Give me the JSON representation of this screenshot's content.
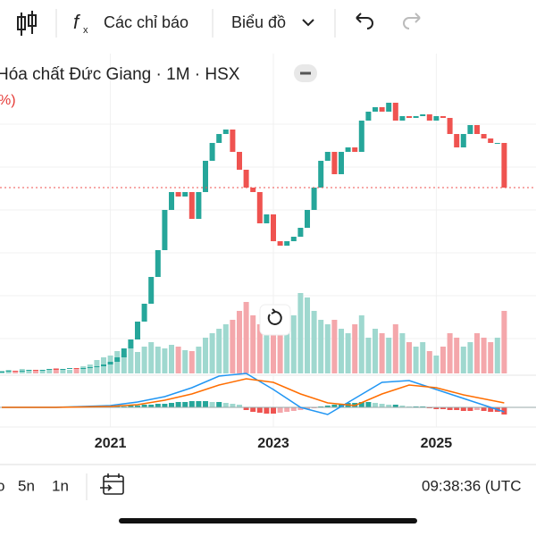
{
  "toolbar": {
    "indicators": "Các chỉ báo",
    "chart_menu": "Biểu đồ"
  },
  "chart": {
    "title": "Hóa chất Đức Giang · 1M · HSX",
    "change": "%)",
    "x_labels": [
      {
        "index": 16,
        "label": "2021"
      },
      {
        "index": 40,
        "label": "2023"
      },
      {
        "index": 64,
        "label": "2025"
      }
    ],
    "close": [
      24,
      25,
      24,
      25,
      26,
      25,
      26,
      27,
      26,
      27,
      28,
      27,
      28,
      29,
      30,
      32,
      35,
      40,
      50,
      60,
      80,
      100,
      130,
      160,
      205,
      225,
      220,
      225,
      195,
      225,
      260,
      280,
      290,
      295,
      270,
      250,
      230,
      225,
      190,
      200,
      170,
      165,
      170,
      175,
      185,
      205,
      230,
      260,
      270,
      245,
      270,
      275,
      270,
      305,
      315,
      320,
      315,
      325,
      305,
      310,
      308,
      310,
      312,
      305,
      310,
      308,
      290,
      275,
      290,
      300,
      290,
      285,
      280,
      280,
      230
    ],
    "volume": [
      3,
      4,
      3,
      5,
      4,
      3,
      4,
      5,
      6,
      5,
      4,
      6,
      8,
      10,
      15,
      18,
      20,
      25,
      22,
      28,
      24,
      30,
      35,
      30,
      28,
      32,
      30,
      26,
      25,
      30,
      40,
      45,
      50,
      55,
      60,
      70,
      80,
      65,
      55,
      45,
      60,
      70,
      75,
      65,
      90,
      85,
      70,
      60,
      55,
      60,
      50,
      45,
      55,
      65,
      40,
      50,
      45,
      40,
      55,
      45,
      35,
      30,
      35,
      25,
      20,
      30,
      45,
      40,
      30,
      35,
      45,
      40,
      35,
      40,
      70
    ],
    "histogram": [
      0,
      0,
      0,
      0,
      0,
      0,
      0,
      0,
      0,
      0,
      0,
      0,
      0,
      0,
      0,
      0,
      0,
      1,
      1,
      2,
      2,
      3,
      3,
      4,
      4,
      5,
      6,
      6,
      7,
      7,
      7,
      6,
      6,
      5,
      4,
      3,
      -3,
      -5,
      -6,
      -7,
      -7,
      -6,
      -5,
      -4,
      -3,
      -2,
      -1,
      1,
      2,
      3,
      4,
      5,
      5,
      6,
      6,
      5,
      4,
      3,
      3,
      2,
      1,
      1,
      1,
      -1,
      -2,
      -2,
      -3,
      -3,
      -4,
      -4,
      -3,
      -4,
      -5,
      -5,
      -8
    ],
    "line_x": [
      0,
      8,
      16,
      20,
      24,
      28,
      32,
      36,
      40,
      44,
      48,
      52,
      56,
      60,
      64,
      68,
      74
    ],
    "macd": [
      0,
      0,
      2,
      6,
      12,
      22,
      35,
      38,
      20,
      0,
      -8,
      10,
      28,
      30,
      20,
      10,
      -5
    ],
    "signal": [
      0,
      0,
      1,
      3,
      8,
      15,
      25,
      32,
      28,
      15,
      5,
      2,
      15,
      25,
      22,
      14,
      5
    ]
  },
  "bottom_bar": {
    "ranges": [
      "o",
      "5n",
      "1n"
    ],
    "time": "09:38:36 (UTC"
  }
}
